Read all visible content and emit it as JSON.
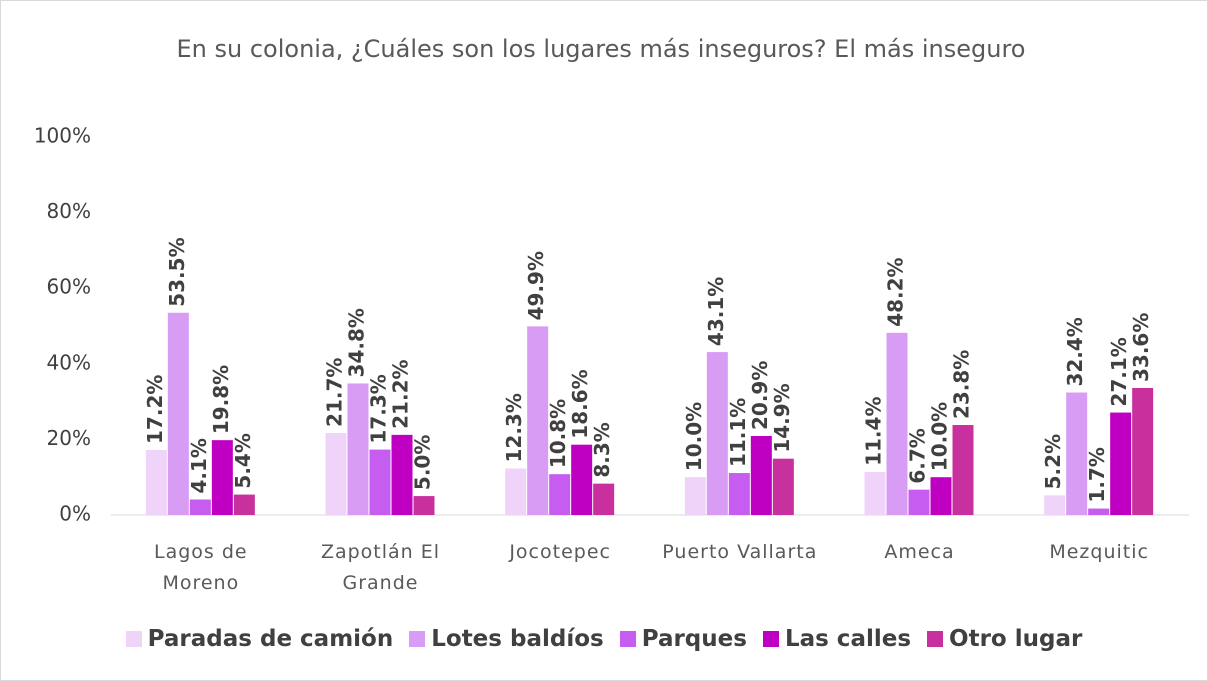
{
  "chart_data": {
    "type": "bar",
    "title": "En su colonia, ¿Cuáles son los lugares más inseguros? El más inseguro",
    "categories": [
      "Lagos de Moreno",
      "Zapotlán El Grande",
      "Jocotepec",
      "Puerto Vallarta",
      "Ameca",
      "Mezquitic"
    ],
    "series": [
      {
        "name": "Paradas de camión",
        "color": "#f0d3f8",
        "values": [
          17.2,
          21.7,
          12.3,
          10.0,
          11.4,
          5.2
        ],
        "value_labels": [
          "17.2%",
          "21.7%",
          "12.3%",
          "10.0%",
          "11.4%",
          "5.2%"
        ]
      },
      {
        "name": "Lotes baldíos",
        "color": "#d99cf5",
        "values": [
          53.5,
          34.8,
          49.9,
          43.1,
          48.2,
          32.4
        ],
        "value_labels": [
          "53.5%",
          "34.8%",
          "49.9%",
          "43.1%",
          "48.2%",
          "32.4%"
        ]
      },
      {
        "name": "Parques",
        "color": "#c65cf0",
        "values": [
          4.1,
          17.3,
          10.8,
          11.1,
          6.7,
          1.7
        ],
        "value_labels": [
          "4.1%",
          "17.3%",
          "10.8%",
          "11.1%",
          "6.7%",
          "1.7%"
        ]
      },
      {
        "name": "Las calles",
        "color": "#bf00c2",
        "values": [
          19.8,
          21.2,
          18.6,
          20.9,
          10.0,
          27.1
        ],
        "value_labels": [
          "19.8%",
          "21.2%",
          "18.6%",
          "20.9%",
          "10.0%",
          "27.1%"
        ]
      },
      {
        "name": "Otro lugar",
        "color": "#c8309e",
        "values": [
          5.4,
          5.0,
          8.3,
          14.9,
          23.8,
          33.6
        ],
        "value_labels": [
          "5.4%",
          "5.0%",
          "8.3%",
          "14.9%",
          "23.8%",
          "33.6%"
        ]
      }
    ],
    "ylim": [
      0,
      100
    ],
    "yticks": [
      {
        "value": 0,
        "label": "0%"
      },
      {
        "value": 20,
        "label": "20%"
      },
      {
        "value": 40,
        "label": "40%"
      },
      {
        "value": 60,
        "label": "60%"
      },
      {
        "value": 80,
        "label": "80%"
      },
      {
        "value": 100,
        "label": "100%"
      }
    ],
    "legend": "bottom"
  }
}
